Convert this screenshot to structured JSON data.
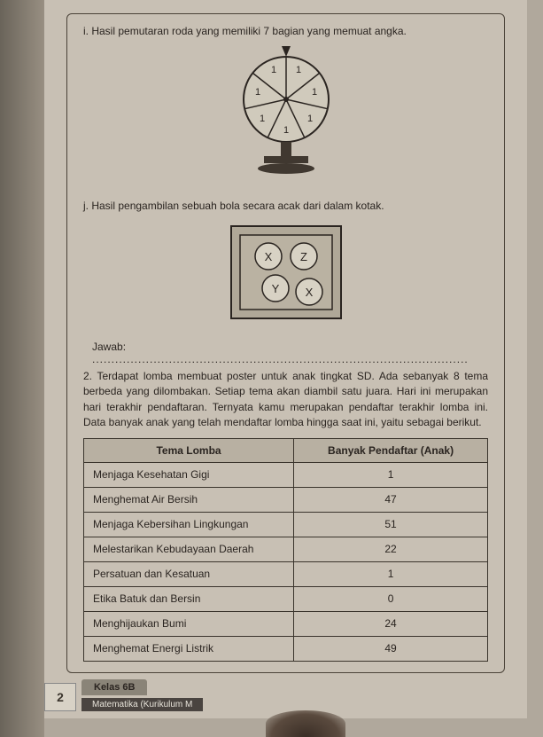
{
  "item_i": {
    "label": "i.",
    "text": "Hasil pemutaran roda yang memiliki 7 bagian yang memuat angka.",
    "wheel_values": [
      "1",
      "1",
      "1",
      "1",
      "1",
      "1",
      "1"
    ]
  },
  "item_j": {
    "label": "j.",
    "text": "Hasil pengambilan sebuah bola secara acak dari dalam kotak.",
    "balls": [
      "X",
      "Z",
      "Y",
      "X"
    ]
  },
  "jawab_label": "Jawab:",
  "q2": {
    "num": "2.",
    "text": "Terdapat lomba membuat poster untuk anak tingkat SD. Ada sebanyak 8 tema berbeda yang dilombakan. Setiap tema akan diambil satu juara. Hari ini merupakan hari terakhir pendaftaran. Ternyata kamu merupakan pendaftar terakhir lomba ini. Data banyak anak yang telah mendaftar lomba hingga saat ini, yaitu sebagai berikut."
  },
  "table": {
    "header_theme": "Tema Lomba",
    "header_count": "Banyak Pendaftar (Anak)",
    "rows": [
      {
        "theme": "Menjaga Kesehatan Gigi",
        "count": "1"
      },
      {
        "theme": "Menghemat Air Bersih",
        "count": "47"
      },
      {
        "theme": "Menjaga Kebersihan Lingkungan",
        "count": "51"
      },
      {
        "theme": "Melestarikan Kebudayaan Daerah",
        "count": "22"
      },
      {
        "theme": "Persatuan dan Kesatuan",
        "count": "1"
      },
      {
        "theme": "Etika Batuk dan Bersin",
        "count": "0"
      },
      {
        "theme": "Menghijaukan Bumi",
        "count": "24"
      },
      {
        "theme": "Menghemat Energi Listrik",
        "count": "49"
      }
    ]
  },
  "footer": {
    "page_num": "2",
    "kelas": "Kelas 6B",
    "mat": "Matematika (Kurikulum M"
  }
}
